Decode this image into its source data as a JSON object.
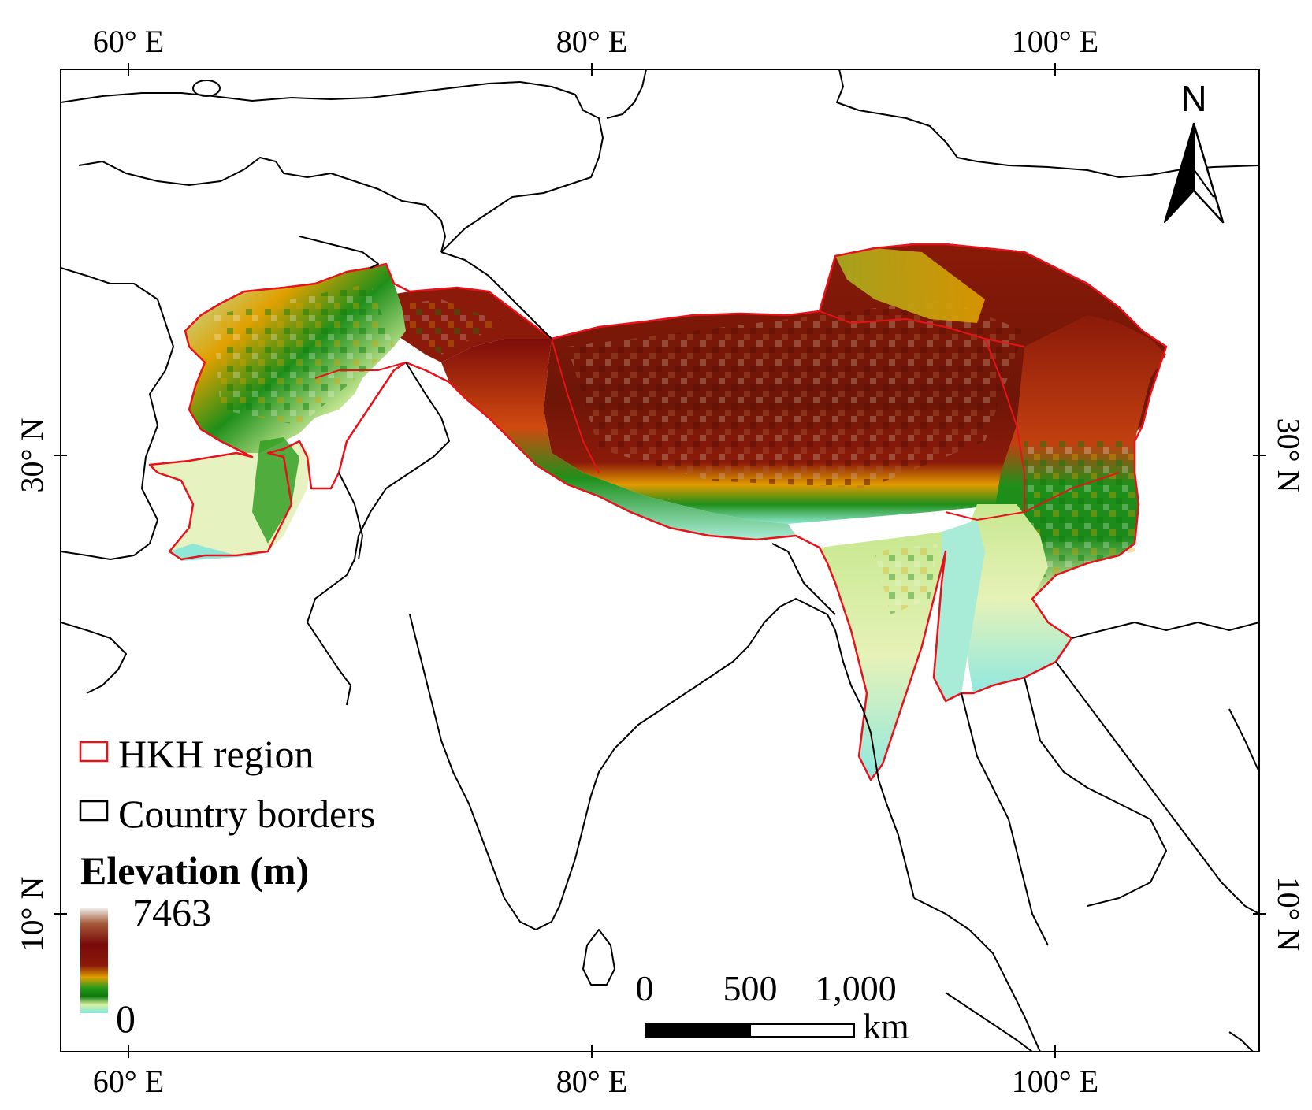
{
  "map": {
    "graticule": {
      "lon_labels": [
        "60° E",
        "80° E",
        "100° E"
      ],
      "lat_labels": [
        "30° N",
        "10° N"
      ]
    },
    "north_arrow": {
      "label": "N",
      "icon": "north-arrow-icon"
    },
    "scale_bar": {
      "labels": [
        "0",
        "500",
        "1,000"
      ],
      "unit": "km"
    },
    "legend": {
      "items": [
        {
          "label": "HKH region",
          "stroke_color": "#e8121b"
        },
        {
          "label": "Country borders",
          "stroke_color": "#000000"
        }
      ],
      "colorbar": {
        "title": "Elevation (m)",
        "max_label": "7463",
        "min_label": "0",
        "colors_top_to_bottom": [
          "#f2f2f2",
          "#a0522d",
          "#7a0a0a",
          "#8b1a0a",
          "#e0a000",
          "#2a9a1a",
          "#0b7a0b",
          "#d8f0a0",
          "#7fe8e0"
        ]
      }
    },
    "colors": {
      "hkh_outline": "#e8121b",
      "country_border": "#000000",
      "frame": "#000000"
    }
  }
}
